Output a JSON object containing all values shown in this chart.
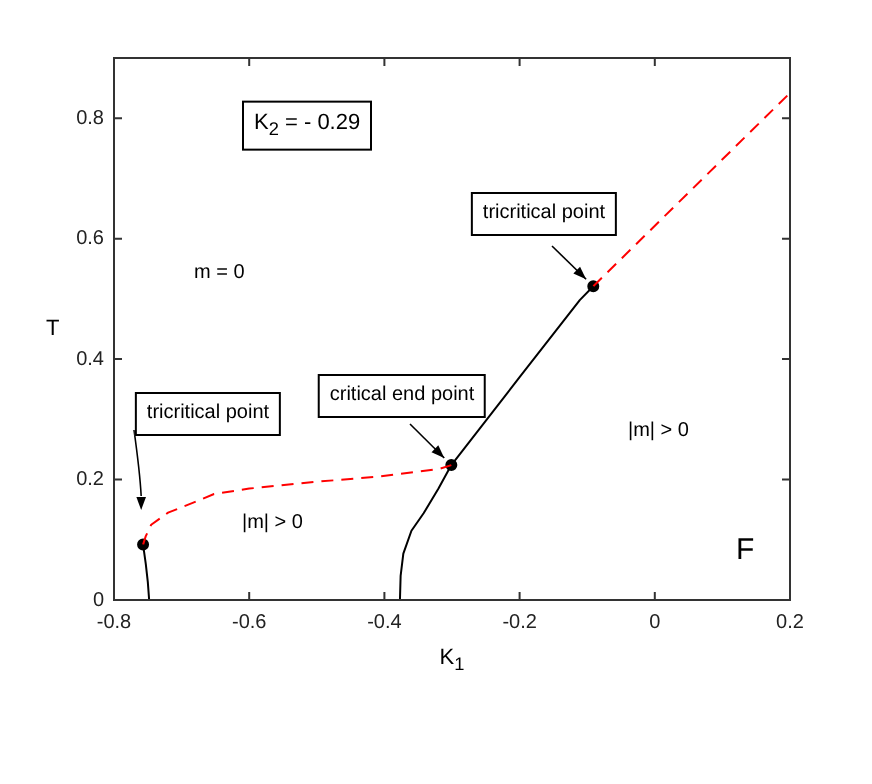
{
  "chart_data": {
    "type": "line",
    "xlabel": "K$_{1}$",
    "ylabel": "T",
    "xlim": [
      -0.8,
      0.2
    ],
    "xticks": [
      -0.8,
      -0.6,
      -0.4,
      -0.2,
      0,
      0.2
    ],
    "ylim": [
      0,
      0.9
    ],
    "yticks": [
      0,
      0.2,
      0.4,
      0.6,
      0.8
    ],
    "grid": false,
    "legend": false,
    "series": [
      {
        "color": "#000000",
        "line_style": "solid",
        "marker": "none",
        "x": [
          -0.748,
          -0.75,
          -0.753,
          -0.757
        ],
        "values": [
          0,
          0.03,
          0.06,
          0.092
        ]
      },
      {
        "color": "#ff0000",
        "line_style": "dashed",
        "marker": "none",
        "x": [
          -0.757,
          -0.753,
          -0.745,
          -0.72,
          -0.68,
          -0.652,
          -0.6,
          -0.504,
          -0.407,
          -0.318,
          -0.301
        ],
        "values": [
          0.092,
          0.106,
          0.125,
          0.145,
          0.163,
          0.176,
          0.185,
          0.196,
          0.205,
          0.218,
          0.224
        ]
      },
      {
        "color": "#000000",
        "line_style": "solid",
        "marker": "none",
        "x": [
          -0.377,
          -0.376,
          -0.372,
          -0.36,
          -0.342,
          -0.32,
          -0.301,
          -0.2,
          -0.111,
          -0.091
        ],
        "values": [
          0,
          0.04,
          0.077,
          0.115,
          0.144,
          0.185,
          0.224,
          0.37,
          0.498,
          0.521
        ]
      },
      {
        "color": "#ff0000",
        "line_style": "dashed",
        "marker": "none",
        "x": [
          -0.091,
          0.2
        ],
        "values": [
          0.521,
          0.842
        ]
      },
      {
        "type": "scatter",
        "color": "#000000",
        "marker": "circle",
        "x": [
          -0.757,
          -0.301,
          -0.091
        ],
        "values": [
          0.092,
          0.224,
          0.521
        ]
      }
    ],
    "annotations": [
      "K$_{2}$ = - 0.29",
      "m = 0",
      {
        "text": "tricritical point",
        "x": -0.091,
        "y": 0.521
      },
      {
        "text": "critical end point",
        "x": -0.301,
        "y": 0.224
      },
      "tricritical point",
      "|m| > 0",
      "|m| > 0",
      "F"
    ]
  }
}
